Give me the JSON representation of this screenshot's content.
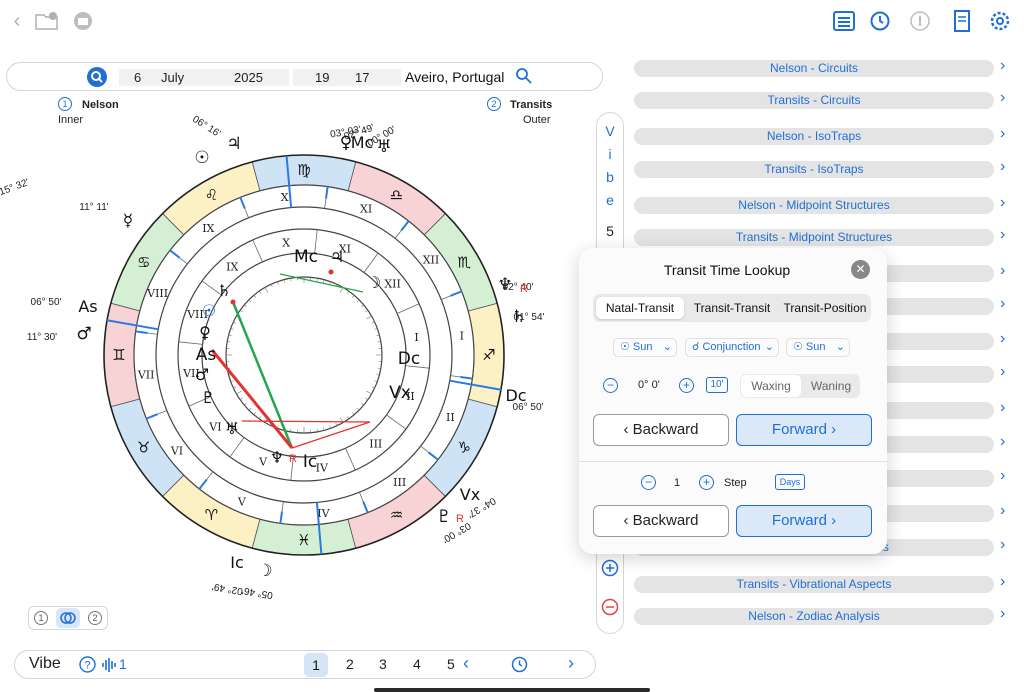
{
  "toolbar": {
    "left_icons": [
      "chevron-left-icon",
      "folder-question-icon",
      "archive-icon"
    ],
    "right_icons": [
      "list-icon",
      "clock-arrows-icon",
      "info-icon",
      "scroll-icon",
      "gear-icon"
    ]
  },
  "search": {
    "day": "6",
    "month": "July",
    "year": "2025",
    "hour": "19",
    "minute": "17",
    "location": "Aveiro, Portugal"
  },
  "chart_labels": {
    "inner_badge": "1",
    "inner_name": "Nelson",
    "inner_role": "Inner",
    "outer_badge": "2",
    "outer_name": "Transits",
    "outer_role": "Outer"
  },
  "wheel": {
    "outer_signs": [
      "♋",
      "♊",
      "♉",
      "♈",
      "♓",
      "♒",
      "♑",
      "♐",
      "♏",
      "♎",
      "♍",
      "♌"
    ],
    "outer_houses": [
      "X",
      "IX",
      "VIII",
      "VII",
      "VI",
      "V",
      "IV",
      "III",
      "II",
      "I",
      "XII",
      "XI"
    ],
    "inner_houses": [
      "X",
      "IX",
      "VIII",
      "VII",
      "VI",
      "V",
      "IV",
      "III",
      "II",
      "I",
      "XII",
      "XI"
    ],
    "outer_planets": [
      {
        "glyph": "☉",
        "deg": "15° 32'"
      },
      {
        "glyph": "♃",
        "deg": "06° 16'"
      },
      {
        "glyph": "♀",
        "deg": "03° 03'"
      },
      {
        "glyph": "Mc",
        "deg": "02° 49'"
      },
      {
        "glyph": "♅",
        "deg": "00° 00'"
      },
      {
        "glyph": "♆",
        "deg": "02° 40'"
      },
      {
        "glyph": "♄",
        "deg": "01° 54'"
      },
      {
        "glyph": "Dc",
        "deg": "06° 50'"
      },
      {
        "glyph": "Vx",
        "deg": "04° 37'"
      },
      {
        "glyph": "♇",
        "deg": "03° 00'"
      },
      {
        "glyph": "☽",
        "deg": "05° 46'"
      },
      {
        "glyph": "Ic",
        "deg": "02° 49'"
      },
      {
        "glyph": "♂",
        "deg": "11° 30'"
      },
      {
        "glyph": "As",
        "deg": "06° 50'"
      },
      {
        "glyph": "☿",
        "deg": "11° 11'"
      }
    ],
    "inner_planets": [
      "Mc",
      "♃",
      "☽",
      "Dc",
      "Vx",
      "Ic",
      "♆",
      "♅",
      "♇",
      "♂",
      "As",
      "♀",
      "☉",
      "♄"
    ],
    "retro_mark": "R"
  },
  "vibe_column": {
    "letters": [
      "V",
      "i",
      "b",
      "e"
    ],
    "number": "5",
    "plus_icon": "plus-circle-icon",
    "minus_icon": "minus-circle-icon"
  },
  "right_list": [
    "Nelson - Circuits",
    "Transits - Circuits",
    "Nelson - IsoTraps",
    "Transits - IsoTraps",
    "Nelson - Midpoint Structures",
    "Transits - Midpoint Structures",
    "",
    "",
    "",
    "",
    "",
    "",
    "",
    "",
    "Nelson - Vibrational Aspects",
    "Transits - Vibrational Aspects",
    "Nelson - Zodiac Analysis"
  ],
  "popup": {
    "title": "Transit Time Lookup",
    "tabs": [
      "Natal-Transit",
      "Transit-Transit",
      "Transit-Position"
    ],
    "planet1": "☉ Sun",
    "aspect": "☌ Conjunction",
    "planet2": "☉ Sun",
    "orb": "0° 0'",
    "orb_step": "10'",
    "phase_options": [
      "Waxing",
      "Waning"
    ],
    "backward_label": "Backward",
    "forward_label": "Forward",
    "step_value": "1",
    "step_label": "Step",
    "step_unit": "Days"
  },
  "bottom_bar": {
    "title": "Vibe",
    "wave_count": "1",
    "pages": [
      "1",
      "2",
      "3",
      "4",
      "5"
    ],
    "active_page": "1"
  },
  "toggle_group": [
    "1",
    "",
    "2"
  ]
}
